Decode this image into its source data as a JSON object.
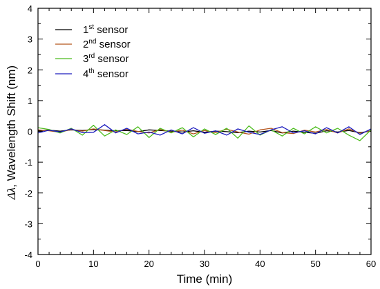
{
  "chart_data": {
    "type": "line",
    "title": "",
    "xlabel": "Time (min)",
    "ylabel": "Δλ, Wavelength Shift (nm)",
    "ylabel_symbol": "Δλ",
    "ylabel_rest": ", Wavelength Shift (nm)",
    "xlim": [
      0,
      60
    ],
    "ylim": [
      -4,
      4
    ],
    "xticks": [
      0,
      10,
      20,
      30,
      40,
      50,
      60
    ],
    "yticks": [
      -4,
      -3,
      -2,
      -1,
      0,
      1,
      2,
      3,
      4
    ],
    "grid": false,
    "legend_position": "top-left",
    "series": [
      {
        "name": "1st sensor",
        "ordinal": "1",
        "suffix": "st",
        "label_rest": " sensor",
        "color": "#000000",
        "x": [
          0,
          2,
          4,
          6,
          8,
          10,
          12,
          14,
          16,
          18,
          20,
          22,
          24,
          26,
          28,
          30,
          32,
          34,
          36,
          38,
          40,
          42,
          44,
          46,
          48,
          50,
          52,
          54,
          56,
          58,
          60
        ],
        "y": [
          0.02,
          0.04,
          0.01,
          0.05,
          0.03,
          0.06,
          0.04,
          0.02,
          0.03,
          -0.01,
          0.05,
          0.03,
          0.01,
          -0.02,
          0.02,
          -0.03,
          0.01,
          -0.01,
          -0.04,
          0.01,
          -0.02,
          0.03,
          -0.05,
          0.01,
          -0.03,
          -0.06,
          0.02,
          -0.02,
          0.03,
          -0.04,
          0.01
        ]
      },
      {
        "name": "2nd sensor",
        "ordinal": "2",
        "suffix": "nd",
        "label_rest": " sensor",
        "color": "#b5541b",
        "x": [
          0,
          2,
          4,
          6,
          8,
          10,
          12,
          14,
          16,
          18,
          20,
          22,
          24,
          26,
          28,
          30,
          32,
          34,
          36,
          38,
          40,
          42,
          44,
          46,
          48,
          50,
          52,
          54,
          56,
          58,
          60
        ],
        "y": [
          0.05,
          0.02,
          -0.03,
          0.06,
          0.01,
          0.08,
          0.03,
          -0.02,
          0.07,
          0.0,
          -0.05,
          0.06,
          -0.03,
          0.04,
          -0.08,
          0.03,
          -0.04,
          0.07,
          -0.02,
          -0.09,
          0.05,
          0.1,
          -0.04,
          -0.07,
          0.04,
          -0.02,
          0.06,
          -0.05,
          0.08,
          -0.06,
          0.03
        ]
      },
      {
        "name": "3rd sensor",
        "ordinal": "3",
        "suffix": "rd",
        "label_rest": " sensor",
        "color": "#4cbc1d",
        "x": [
          0,
          2,
          4,
          6,
          8,
          10,
          12,
          14,
          16,
          18,
          20,
          22,
          24,
          26,
          28,
          30,
          32,
          34,
          36,
          38,
          40,
          42,
          44,
          46,
          48,
          50,
          52,
          54,
          56,
          58,
          60
        ],
        "y": [
          0.12,
          0.06,
          -0.05,
          0.1,
          -0.12,
          0.2,
          -0.15,
          0.05,
          -0.1,
          0.15,
          -0.2,
          0.1,
          -0.05,
          0.12,
          -0.18,
          0.08,
          -0.1,
          0.1,
          -0.22,
          0.18,
          -0.12,
          0.05,
          -0.15,
          0.1,
          -0.08,
          0.15,
          -0.05,
          0.1,
          -0.12,
          -0.3,
          0.05
        ]
      },
      {
        "name": "4th sensor",
        "ordinal": "4",
        "suffix": "th",
        "label_rest": " sensor",
        "color": "#1c1cbe",
        "x": [
          0,
          2,
          4,
          6,
          8,
          10,
          12,
          14,
          16,
          18,
          20,
          22,
          24,
          26,
          28,
          30,
          32,
          34,
          36,
          38,
          40,
          42,
          44,
          46,
          48,
          50,
          52,
          54,
          56,
          58,
          60
        ],
        "y": [
          -0.05,
          0.04,
          -0.02,
          0.08,
          -0.04,
          -0.03,
          0.22,
          -0.05,
          0.1,
          -0.08,
          -0.02,
          -0.12,
          0.05,
          -0.08,
          0.12,
          -0.06,
          0.02,
          -0.12,
          0.08,
          -0.03,
          -0.1,
          0.05,
          0.15,
          -0.05,
          0.02,
          -0.08,
          0.12,
          -0.05,
          0.15,
          -0.1,
          0.08
        ]
      }
    ]
  }
}
